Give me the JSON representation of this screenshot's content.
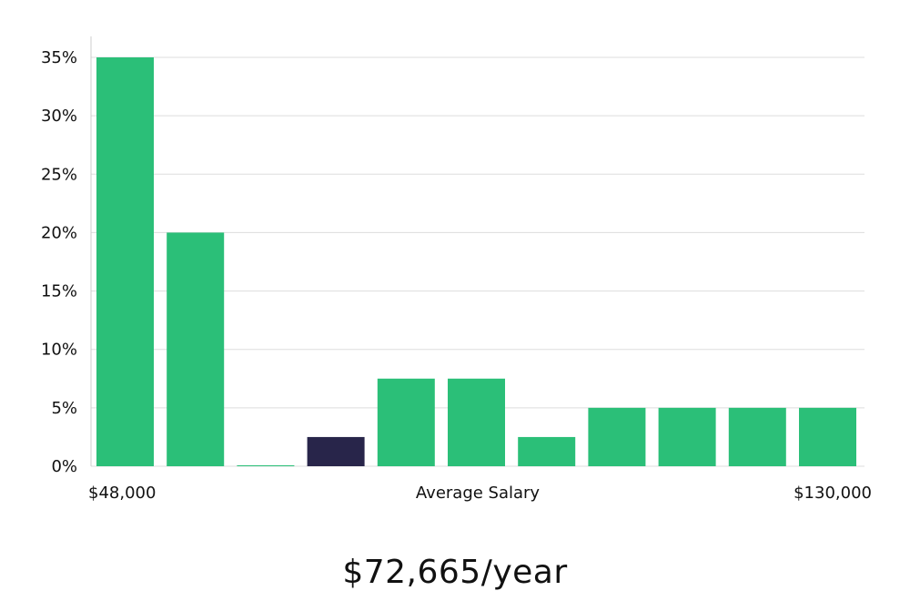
{
  "chart_data": {
    "type": "bar",
    "values": [
      35,
      20,
      0,
      2.5,
      7.5,
      7.5,
      2.5,
      5,
      5,
      5,
      5
    ],
    "highlight_index": 3,
    "ylim": [
      0,
      35
    ],
    "yticks": [
      0,
      5,
      10,
      15,
      20,
      25,
      30,
      35
    ],
    "ytick_labels": [
      "0%",
      "5%",
      "10%",
      "15%",
      "20%",
      "25%",
      "30%",
      "35%"
    ],
    "x_min_label": "$48,000",
    "x_max_label": "$130,000",
    "xlabel": "Average Salary",
    "grid": true,
    "colors": {
      "bar": "#2bbf78",
      "highlight": "#28254a",
      "grid": "#dddddd",
      "axis": "#cccccc"
    }
  },
  "summary": {
    "salary": "$72,665/year"
  }
}
